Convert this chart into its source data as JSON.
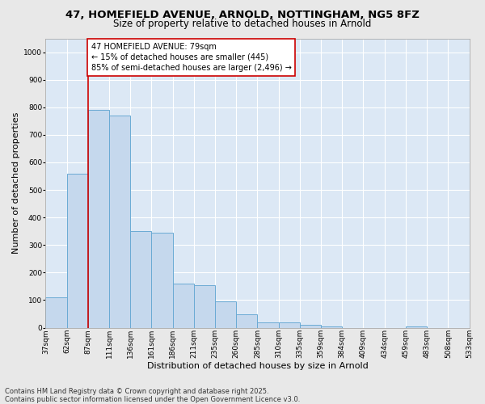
{
  "title_line1": "47, HOMEFIELD AVENUE, ARNOLD, NOTTINGHAM, NG5 8FZ",
  "title_line2": "Size of property relative to detached houses in Arnold",
  "xlabel": "Distribution of detached houses by size in Arnold",
  "ylabel": "Number of detached properties",
  "bar_values": [
    110,
    560,
    790,
    770,
    350,
    345,
    160,
    155,
    95,
    50,
    20,
    20,
    10,
    5,
    0,
    0,
    0,
    5,
    0,
    0
  ],
  "categories": [
    "37sqm",
    "62sqm",
    "87sqm",
    "111sqm",
    "136sqm",
    "161sqm",
    "186sqm",
    "211sqm",
    "235sqm",
    "260sqm",
    "285sqm",
    "310sqm",
    "335sqm",
    "359sqm",
    "384sqm",
    "409sqm",
    "434sqm",
    "459sqm",
    "483sqm",
    "508sqm",
    "533sqm"
  ],
  "bar_color": "#c5d8ed",
  "bar_edge_color": "#6aaad4",
  "property_line_color": "#cc0000",
  "annotation_text": "47 HOMEFIELD AVENUE: 79sqm\n← 15% of detached houses are smaller (445)\n85% of semi-detached houses are larger (2,496) →",
  "annotation_box_color": "#ffffff",
  "annotation_box_edge_color": "#cc0000",
  "ylim": [
    0,
    1050
  ],
  "yticks": [
    0,
    100,
    200,
    300,
    400,
    500,
    600,
    700,
    800,
    900,
    1000
  ],
  "bg_color": "#dce8f5",
  "fig_bg_color": "#e8e8e8",
  "grid_color": "#ffffff",
  "footer_line1": "Contains HM Land Registry data © Crown copyright and database right 2025.",
  "footer_line2": "Contains public sector information licensed under the Open Government Licence v3.0.",
  "title1_fontsize": 9.5,
  "title2_fontsize": 8.5,
  "axis_label_fontsize": 8,
  "tick_fontsize": 6.5,
  "annotation_fontsize": 7,
  "footer_fontsize": 6
}
